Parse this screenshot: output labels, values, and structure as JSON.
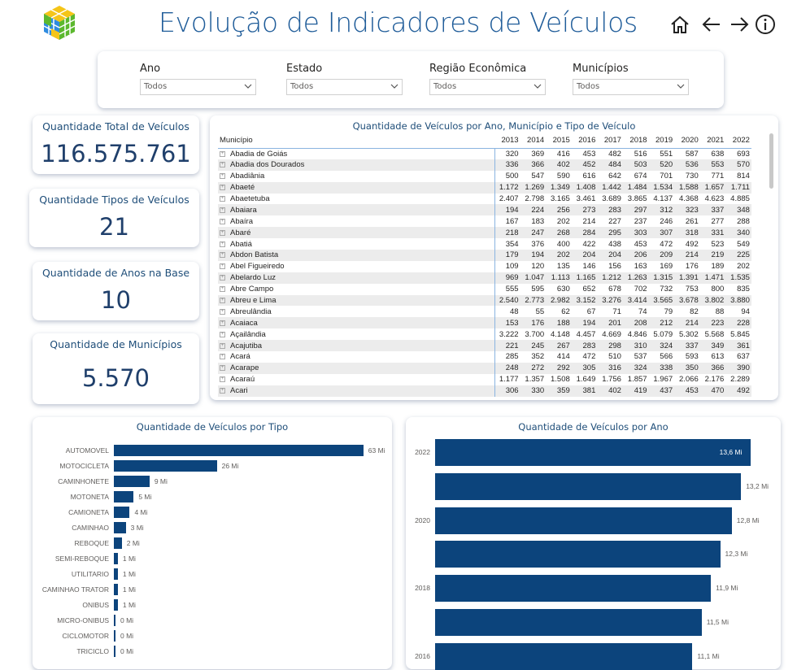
{
  "header": {
    "title": "Evolução de Indicadores de Veículos",
    "icons": [
      "home-icon",
      "arrow-left-icon",
      "arrow-right-icon",
      "info-icon"
    ]
  },
  "filters": [
    {
      "label": "Ano",
      "value": "Todos"
    },
    {
      "label": "Estado",
      "value": "Todos"
    },
    {
      "label": "Região Econômica",
      "value": "Todos"
    },
    {
      "label": "Municípios",
      "value": "Todos"
    }
  ],
  "kpis": [
    {
      "title": "Quantidade Total de Veículos",
      "value": "116.575.761"
    },
    {
      "title": "Quantidade Tipos de Veículos",
      "value": "21"
    },
    {
      "title": "Quantidade de Anos na Base",
      "value": "10"
    },
    {
      "title": "Quantidade de Municípios",
      "value": "5.570"
    }
  ],
  "table": {
    "title": "Quantidade de Veículos por Ano, Município e Tipo de Veículo",
    "col_header": "Município",
    "years": [
      "2013",
      "2014",
      "2015",
      "2016",
      "2017",
      "2018",
      "2019",
      "2020",
      "2021",
      "2022"
    ],
    "rows": [
      [
        "Abadia de Goiás",
        "320",
        "369",
        "416",
        "453",
        "482",
        "516",
        "551",
        "587",
        "638",
        "693"
      ],
      [
        "Abadia dos Dourados",
        "336",
        "366",
        "402",
        "452",
        "484",
        "503",
        "520",
        "536",
        "553",
        "570"
      ],
      [
        "Abadiânia",
        "500",
        "547",
        "590",
        "616",
        "642",
        "674",
        "701",
        "730",
        "771",
        "814"
      ],
      [
        "Abaeté",
        "1.172",
        "1.269",
        "1.349",
        "1.408",
        "1.442",
        "1.484",
        "1.534",
        "1.588",
        "1.657",
        "1.711"
      ],
      [
        "Abaetetuba",
        "2.407",
        "2.798",
        "3.165",
        "3.461",
        "3.689",
        "3.865",
        "4.137",
        "4.368",
        "4.623",
        "4.885"
      ],
      [
        "Abaiara",
        "194",
        "224",
        "256",
        "273",
        "283",
        "297",
        "312",
        "323",
        "337",
        "348"
      ],
      [
        "Abaíra",
        "167",
        "183",
        "202",
        "214",
        "227",
        "237",
        "246",
        "261",
        "277",
        "288"
      ],
      [
        "Abaré",
        "218",
        "247",
        "268",
        "284",
        "295",
        "303",
        "307",
        "318",
        "331",
        "340"
      ],
      [
        "Abatiá",
        "354",
        "376",
        "400",
        "422",
        "438",
        "453",
        "472",
        "492",
        "523",
        "549"
      ],
      [
        "Abdon Batista",
        "179",
        "194",
        "202",
        "204",
        "204",
        "206",
        "209",
        "214",
        "219",
        "225"
      ],
      [
        "Abel Figueiredo",
        "109",
        "120",
        "135",
        "146",
        "156",
        "163",
        "169",
        "176",
        "189",
        "202"
      ],
      [
        "Abelardo Luz",
        "969",
        "1.047",
        "1.113",
        "1.165",
        "1.212",
        "1.263",
        "1.315",
        "1.391",
        "1.471",
        "1.535"
      ],
      [
        "Abre Campo",
        "555",
        "595",
        "630",
        "652",
        "678",
        "702",
        "732",
        "753",
        "800",
        "835"
      ],
      [
        "Abreu e Lima",
        "2.540",
        "2.773",
        "2.982",
        "3.152",
        "3.276",
        "3.414",
        "3.565",
        "3.678",
        "3.802",
        "3.880"
      ],
      [
        "Abreulândia",
        "48",
        "55",
        "62",
        "67",
        "71",
        "74",
        "79",
        "82",
        "88",
        "94"
      ],
      [
        "Acaiaca",
        "153",
        "176",
        "188",
        "194",
        "201",
        "208",
        "212",
        "214",
        "223",
        "228"
      ],
      [
        "Açailândia",
        "3.222",
        "3.700",
        "4.148",
        "4.457",
        "4.669",
        "4.846",
        "5.079",
        "5.302",
        "5.568",
        "5.845"
      ],
      [
        "Acajutiba",
        "221",
        "245",
        "267",
        "283",
        "298",
        "310",
        "324",
        "337",
        "349",
        "361"
      ],
      [
        "Acará",
        "285",
        "352",
        "414",
        "472",
        "510",
        "537",
        "566",
        "593",
        "613",
        "637"
      ],
      [
        "Acarape",
        "248",
        "272",
        "292",
        "305",
        "316",
        "324",
        "338",
        "350",
        "366",
        "390"
      ],
      [
        "Acaraú",
        "1.177",
        "1.357",
        "1.508",
        "1.649",
        "1.756",
        "1.857",
        "1.967",
        "2.066",
        "2.176",
        "2.289"
      ],
      [
        "Acari",
        "306",
        "330",
        "359",
        "381",
        "402",
        "419",
        "437",
        "453",
        "470",
        "492"
      ]
    ]
  },
  "chart_data": [
    {
      "type": "bar",
      "orientation": "horizontal",
      "title": "Quantidade de Veículos por Tipo",
      "unit": "Mi",
      "categories": [
        "AUTOMOVEL",
        "MOTOCICLETA",
        "CAMINHONETE",
        "MOTONETA",
        "CAMIONETA",
        "CAMINHAO",
        "REBOQUE",
        "SEMI-REBOQUE",
        "UTILITARIO",
        "CAMINHAO TRATOR",
        "ONIBUS",
        "MICRO-ONIBUS",
        "CICLOMOTOR",
        "TRICICLO"
      ],
      "values": [
        63,
        26,
        9,
        5,
        4,
        3,
        2,
        1,
        1,
        1,
        1,
        0,
        0,
        0
      ],
      "labels": [
        "63 Mi",
        "26 Mi",
        "9 Mi",
        "5 Mi",
        "4 Mi",
        "3 Mi",
        "2 Mi",
        "1 Mi",
        "1 Mi",
        "1 Mi",
        "1 Mi",
        "0 Mi",
        "0 Mi",
        "0 Mi"
      ],
      "color": "#0c447c"
    },
    {
      "type": "bar",
      "orientation": "horizontal",
      "title": "Quantidade de Veículos por Ano",
      "unit": "Mi",
      "categories": [
        "2022",
        "2021",
        "2020",
        "2019",
        "2018",
        "2017",
        "2016"
      ],
      "tick_labels": [
        "2022",
        "",
        "2020",
        "",
        "2018",
        "",
        "2016"
      ],
      "values": [
        13.6,
        13.2,
        12.8,
        12.3,
        11.9,
        11.5,
        11.1
      ],
      "labels": [
        "13,6 Mi",
        "13,2 Mi",
        "12,8 Mi",
        "12,3 Mi",
        "11,9 Mi",
        "11,5 Mi",
        "11,1 Mi"
      ],
      "color": "#0c447c"
    }
  ]
}
